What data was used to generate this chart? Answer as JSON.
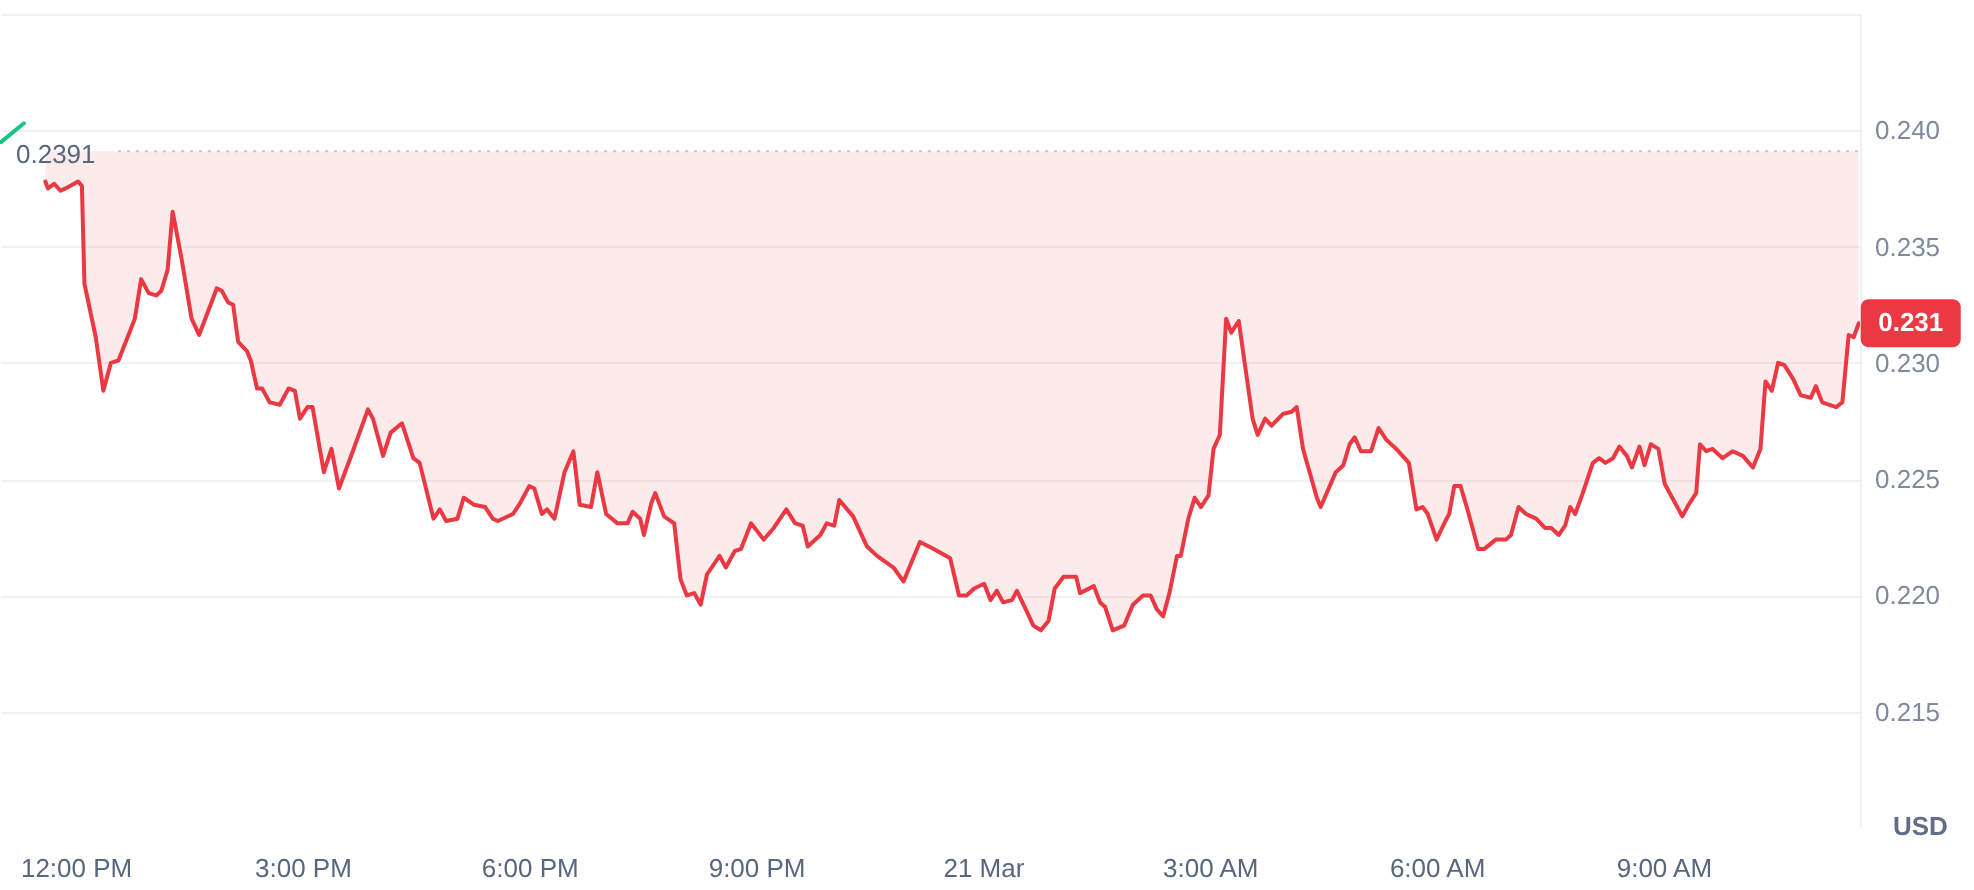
{
  "chart_data": {
    "type": "line",
    "ylabel": "USD",
    "grid": "y",
    "xlim": [
      "--03-20T11:00",
      "--03-21T11:36"
    ],
    "ylim": [
      0.21,
      0.245
    ],
    "xticks": [
      {
        "value": "--03-20T12:00",
        "label": "12:00 PM"
      },
      {
        "value": "--03-20T15:00",
        "label": "3:00 PM"
      },
      {
        "value": "--03-20T18:00",
        "label": "6:00 PM"
      },
      {
        "value": "--03-20T21:00",
        "label": "9:00 PM"
      },
      {
        "value": "--03-21T00:00",
        "label": "21 Mar"
      },
      {
        "value": "--03-21T03:00",
        "label": "3:00 AM"
      },
      {
        "value": "--03-21T06:00",
        "label": "6:00 AM"
      },
      {
        "value": "--03-21T09:00",
        "label": "9:00 AM"
      }
    ],
    "yticks": [
      0.215,
      {
        "value": 0.22,
        "label": "0.220"
      },
      0.225,
      {
        "value": 0.23,
        "label": "0.230"
      },
      0.235,
      {
        "value": 0.24,
        "label": "0.240"
      },
      {
        "value": 0.245,
        "label": null
      }
    ],
    "ref_lines": [
      {
        "axis": "y",
        "value": 0.2391,
        "label": "0.2391",
        "color": "#c3c7cf",
        "line_style": "dotted"
      }
    ],
    "annotations": [
      {
        "text": "0.231",
        "x": "--03-21T11:35",
        "y": 0.2317
      }
    ],
    "series": [
      {
        "color": "#ea3943",
        "x": [
          "--03-20T11:36",
          "--03-20T11:38",
          "--03-20T11:43",
          "--03-20T11:48",
          "--03-20T11:52",
          "--03-20T12:02",
          "--03-20T12:05",
          "--03-20T12:07",
          "--03-20T12:16",
          "--03-20T12:22",
          "--03-20T12:28",
          "--03-20T12:34",
          "--03-20T12:47",
          "--03-20T12:52",
          "--03-20T12:58",
          "--03-20T13:04",
          "--03-20T13:08",
          "--03-20T13:13",
          "--03-20T13:17",
          "--03-20T13:24",
          "--03-20T13:32",
          "--03-20T13:38",
          "--03-20T13:45",
          "--03-20T13:52",
          "--03-20T13:56",
          "--03-20T14:01",
          "--03-20T14:05",
          "--03-20T14:09",
          "--03-20T14:16",
          "--03-20T14:19",
          "--03-20T14:24",
          "--03-20T14:28",
          "--03-20T14:34",
          "--03-20T14:42",
          "--03-20T14:49",
          "--03-20T14:54",
          "--03-20T14:58",
          "--03-20T15:04",
          "--03-20T15:08",
          "--03-20T15:17",
          "--03-20T15:23",
          "--03-20T15:29",
          "--03-20T15:40",
          "--03-20T15:52",
          "--03-20T15:56",
          "--03-20T16:04",
          "--03-20T16:10",
          "--03-20T16:19",
          "--03-20T16:28",
          "--03-20T16:33",
          "--03-20T16:44",
          "--03-20T16:49",
          "--03-20T16:54",
          "--03-20T17:03",
          "--03-20T17:08",
          "--03-20T17:16",
          "--03-20T17:25",
          "--03-20T17:31",
          "--03-20T17:35",
          "--03-20T17:47",
          "--03-20T17:52",
          "--03-20T18:00",
          "--03-20T18:04",
          "--03-20T18:10",
          "--03-20T18:14",
          "--03-20T18:20",
          "--03-20T18:28",
          "--03-20T18:35",
          "--03-20T18:40",
          "--03-20T18:49",
          "--03-20T18:54",
          "--03-20T19:01",
          "--03-20T19:10",
          "--03-20T19:18",
          "--03-20T19:22",
          "--03-20T19:28",
          "--03-20T19:31",
          "--03-20T19:37",
          "--03-20T19:40",
          "--03-20T19:47",
          "--03-20T19:55",
          "--03-20T20:00",
          "--03-20T20:05",
          "--03-20T20:11",
          "--03-20T20:16",
          "--03-20T20:21",
          "--03-20T20:31",
          "--03-20T20:36",
          "--03-20T20:43",
          "--03-20T20:48",
          "--03-20T20:56",
          "--03-20T21:06",
          "--03-20T21:14",
          "--03-20T21:24",
          "--03-20T21:31",
          "--03-20T21:37",
          "--03-20T21:41",
          "--03-20T21:51",
          "--03-20T21:56",
          "--03-20T22:02",
          "--03-20T22:06",
          "--03-20T22:17",
          "--03-20T22:28",
          "--03-20T22:36",
          "--03-20T22:49",
          "--03-20T22:57",
          "--03-20T23:10",
          "--03-20T23:21",
          "--03-20T23:34",
          "--03-20T23:41",
          "--03-20T23:47",
          "--03-20T23:53",
          "--03-21T00:01",
          "--03-21T00:06",
          "--03-21T00:11",
          "--03-21T00:16",
          "--03-21T00:23",
          "--03-21T00:27",
          "--03-21T00:34",
          "--03-21T00:40",
          "--03-21T00:46",
          "--03-21T00:52",
          "--03-21T00:57",
          "--03-21T01:04",
          "--03-21T01:14",
          "--03-21T01:17",
          "--03-21T01:28",
          "--03-21T01:33",
          "--03-21T01:37",
          "--03-21T01:43",
          "--03-21T01:52",
          "--03-21T01:59",
          "--03-21T02:07",
          "--03-21T02:13",
          "--03-21T02:18",
          "--03-21T02:23",
          "--03-21T02:28",
          "--03-21T02:34",
          "--03-21T02:37",
          "--03-21T02:43",
          "--03-21T02:48",
          "--03-21T02:53",
          "--03-21T02:59",
          "--03-21T03:03",
          "--03-21T03:08",
          "--03-21T03:13",
          "--03-21T03:17",
          "--03-21T03:23",
          "--03-21T03:34",
          "--03-21T03:38",
          "--03-21T03:44",
          "--03-21T03:49",
          "--03-21T03:58",
          "--03-21T04:05",
          "--03-21T04:09",
          "--03-21T04:14",
          "--03-21T04:25",
          "--03-21T04:28",
          "--03-21T04:40",
          "--03-21T04:46",
          "--03-21T04:51",
          "--03-21T04:55",
          "--03-21T05:00",
          "--03-21T05:08",
          "--03-21T05:14",
          "--03-21T05:20",
          "--03-21T05:28",
          "--03-21T05:38",
          "--03-21T05:44",
          "--03-21T05:49",
          "--03-21T05:53",
          "--03-21T06:00",
          "--03-21T06:07",
          "--03-21T06:10",
          "--03-21T06:14",
          "--03-21T06:19",
          "--03-21T06:25",
          "--03-21T06:33",
          "--03-21T06:38",
          "--03-21T06:47",
          "--03-21T06:55",
          "--03-21T06:59",
          "--03-21T07:05",
          "--03-21T07:11",
          "--03-21T07:19",
          "--03-21T07:26",
          "--03-21T07:31",
          "--03-21T07:37",
          "--03-21T07:42",
          "--03-21T07:46",
          "--03-21T07:50",
          "--03-21T07:56",
          "--03-21T08:04",
          "--03-21T08:09",
          "--03-21T08:14",
          "--03-21T08:20",
          "--03-21T08:25",
          "--03-21T08:31",
          "--03-21T08:35",
          "--03-21T08:41",
          "--03-21T08:45",
          "--03-21T08:50",
          "--03-21T08:56",
          "--03-21T09:01",
          "--03-21T09:07",
          "--03-21T09:15",
          "--03-21T09:20",
          "--03-21T09:26",
          "--03-21T09:29",
          "--03-21T09:34",
          "--03-21T09:39",
          "--03-21T09:47",
          "--03-21T09:55",
          "--03-21T10:03",
          "--03-21T10:11",
          "--03-21T10:17",
          "--03-21T10:21",
          "--03-21T10:26",
          "--03-21T10:31",
          "--03-21T10:36",
          "--03-21T10:43",
          "--03-21T10:49",
          "--03-21T10:57",
          "--03-21T11:01",
          "--03-21T11:06",
          "--03-21T11:17",
          "--03-21T11:22",
          "--03-21T11:27",
          "--03-21T11:31",
          "--03-21T11:35"
        ],
        "values": [
          0.2378,
          0.2375,
          0.2377,
          0.2374,
          0.2375,
          0.2378,
          0.2376,
          0.2334,
          0.2311,
          0.2288,
          0.23,
          0.2301,
          0.2319,
          0.2336,
          0.233,
          0.2329,
          0.2331,
          0.234,
          0.2365,
          0.2345,
          0.2319,
          0.2312,
          0.2322,
          0.2332,
          0.2331,
          0.2326,
          0.2325,
          0.2309,
          0.2305,
          0.2301,
          0.2289,
          0.2289,
          0.2283,
          0.2282,
          0.2289,
          0.2288,
          0.2276,
          0.2281,
          0.2281,
          0.2253,
          0.2263,
          0.2246,
          0.2262,
          0.228,
          0.2276,
          0.226,
          0.227,
          0.2274,
          0.2259,
          0.2257,
          0.2233,
          0.2237,
          0.2232,
          0.2233,
          0.2242,
          0.2239,
          0.2238,
          0.2233,
          0.2232,
          0.2235,
          0.2239,
          0.2247,
          0.2246,
          0.2235,
          0.2237,
          0.2233,
          0.2253,
          0.2262,
          0.2239,
          0.2238,
          0.2253,
          0.2235,
          0.2231,
          0.2231,
          0.2236,
          0.2233,
          0.2226,
          0.224,
          0.2244,
          0.2234,
          0.2231,
          0.2207,
          0.22,
          0.2201,
          0.2196,
          0.2209,
          0.2217,
          0.2212,
          0.2219,
          0.222,
          0.2231,
          0.2224,
          0.2229,
          0.2237,
          0.2231,
          0.223,
          0.2221,
          0.2226,
          0.2231,
          0.223,
          0.2241,
          0.2234,
          0.2221,
          0.2217,
          0.2212,
          0.2206,
          0.2223,
          0.222,
          0.2216,
          0.22,
          0.22,
          0.2203,
          0.2205,
          0.2198,
          0.2202,
          0.2197,
          0.2198,
          0.2202,
          0.2194,
          0.2187,
          0.2185,
          0.2189,
          0.2203,
          0.2208,
          0.2208,
          0.2201,
          0.2204,
          0.2197,
          0.2195,
          0.2185,
          0.2187,
          0.2196,
          0.22,
          0.22,
          0.2194,
          0.2191,
          0.2201,
          0.2217,
          0.2217,
          0.2233,
          0.2242,
          0.2238,
          0.2243,
          0.2263,
          0.2269,
          0.2319,
          0.2313,
          0.2318,
          0.2276,
          0.2269,
          0.2276,
          0.2273,
          0.2278,
          0.2279,
          0.2281,
          0.2263,
          0.2242,
          0.2238,
          0.2253,
          0.2256,
          0.2265,
          0.2268,
          0.2262,
          0.2262,
          0.2272,
          0.2267,
          0.2263,
          0.2257,
          0.2237,
          0.2238,
          0.2235,
          0.2224,
          0.2232,
          0.2235,
          0.2247,
          0.2247,
          0.2236,
          0.222,
          0.222,
          0.2224,
          0.2224,
          0.2226,
          0.2238,
          0.2235,
          0.2233,
          0.2229,
          0.2229,
          0.2226,
          0.223,
          0.2238,
          0.2235,
          0.2244,
          0.2257,
          0.2259,
          0.2257,
          0.2259,
          0.2264,
          0.226,
          0.2255,
          0.2264,
          0.2256,
          0.2265,
          0.2263,
          0.2248,
          0.2242,
          0.2234,
          0.2239,
          0.2244,
          0.2265,
          0.2262,
          0.2263,
          0.2259,
          0.2262,
          0.226,
          0.2255,
          0.2263,
          0.2292,
          0.2288,
          0.23,
          0.2299,
          0.2293,
          0.2286,
          0.2285,
          0.229,
          0.2283,
          0.2281,
          0.2283,
          0.2312,
          0.2311,
          0.2317
        ],
        "lower": [
          0.2378,
          0.2375,
          0.2377,
          0.2374,
          0.2375,
          0.2378,
          0.2376,
          0.2334,
          0.2311,
          0.2288,
          0.23,
          0.2301,
          0.2319,
          0.2336,
          0.233,
          0.2329,
          0.2331,
          0.234,
          0.2365,
          0.2345,
          0.2319,
          0.2312,
          0.2322,
          0.2332,
          0.2331,
          0.2326,
          0.2325,
          0.2309,
          0.2305,
          0.2301,
          0.2289,
          0.2289,
          0.2283,
          0.2282,
          0.2289,
          0.2288,
          0.2276,
          0.2281,
          0.2281,
          0.2253,
          0.2263,
          0.2246,
          0.2262,
          0.228,
          0.2276,
          0.226,
          0.227,
          0.2274,
          0.2259,
          0.2257,
          0.2233,
          0.2237,
          0.2232,
          0.2233,
          0.2242,
          0.2239,
          0.2238,
          0.2233,
          0.2232,
          0.2235,
          0.2239,
          0.2247,
          0.2246,
          0.2235,
          0.2237,
          0.2233,
          0.2253,
          0.2262,
          0.2239,
          0.2238,
          0.2253,
          0.2235,
          0.2231,
          0.2231,
          0.2236,
          0.2233,
          0.2226,
          0.224,
          0.2244,
          0.2234,
          0.2231,
          0.2207,
          0.22,
          0.2201,
          0.2196,
          0.2209,
          0.2217,
          0.2212,
          0.2219,
          0.222,
          0.2231,
          0.2224,
          0.2229,
          0.2237,
          0.2231,
          0.223,
          0.2221,
          0.2226,
          0.2231,
          0.223,
          0.2241,
          0.2234,
          0.2221,
          0.2217,
          0.2212,
          0.2206,
          0.2223,
          0.222,
          0.2216,
          0.22,
          0.22,
          0.2203,
          0.2205,
          0.2198,
          0.2202,
          0.2197,
          0.2198,
          0.2202,
          0.2194,
          0.2187,
          0.2185,
          0.2189,
          0.2203,
          0.2208,
          0.2208,
          0.2201,
          0.2204,
          0.2197,
          0.2195,
          0.2185,
          0.2187,
          0.2196,
          0.22,
          0.22,
          0.2194,
          0.2191,
          0.2201,
          0.2217,
          0.2217,
          0.2233,
          0.2242,
          0.2238,
          0.2243,
          0.2263,
          0.2269,
          0.2319,
          0.2313,
          0.2318,
          0.2276,
          0.2269,
          0.2276,
          0.2273,
          0.2278,
          0.2279,
          0.2281,
          0.2263,
          0.2242,
          0.2238,
          0.2253,
          0.2256,
          0.2265,
          0.2268,
          0.2262,
          0.2262,
          0.2272,
          0.2267,
          0.2263,
          0.2257,
          0.2237,
          0.2238,
          0.2235,
          0.2224,
          0.2232,
          0.2235,
          0.2247,
          0.2247,
          0.2236,
          0.222,
          0.222,
          0.2224,
          0.2224,
          0.2226,
          0.2238,
          0.2235,
          0.2233,
          0.2229,
          0.2229,
          0.2226,
          0.223,
          0.2238,
          0.2235,
          0.2244,
          0.2257,
          0.2259,
          0.2257,
          0.2259,
          0.2264,
          0.226,
          0.2255,
          0.2264,
          0.2256,
          0.2265,
          0.2263,
          0.2248,
          0.2242,
          0.2234,
          0.2239,
          0.2244,
          0.2265,
          0.2262,
          0.2263,
          0.2259,
          0.2262,
          0.226,
          0.2255,
          0.2263,
          0.2292,
          0.2288,
          0.23,
          0.2299,
          0.2293,
          0.2286,
          0.2285,
          0.229,
          0.2283,
          0.2281,
          0.2283,
          0.2312,
          0.2311,
          0.2317
        ],
        "upper": [
          0.2391,
          0.2391,
          0.2391,
          0.2391,
          0.2391,
          0.2391,
          0.2391,
          0.2391,
          0.2391,
          0.2391,
          0.2391,
          0.2391,
          0.2391,
          0.2391,
          0.2391,
          0.2391,
          0.2391,
          0.2391,
          0.2391,
          0.2391,
          0.2391,
          0.2391,
          0.2391,
          0.2391,
          0.2391,
          0.2391,
          0.2391,
          0.2391,
          0.2391,
          0.2391,
          0.2391,
          0.2391,
          0.2391,
          0.2391,
          0.2391,
          0.2391,
          0.2391,
          0.2391,
          0.2391,
          0.2391,
          0.2391,
          0.2391,
          0.2391,
          0.2391,
          0.2391,
          0.2391,
          0.2391,
          0.2391,
          0.2391,
          0.2391,
          0.2391,
          0.2391,
          0.2391,
          0.2391,
          0.2391,
          0.2391,
          0.2391,
          0.2391,
          0.2391,
          0.2391,
          0.2391,
          0.2391,
          0.2391,
          0.2391,
          0.2391,
          0.2391,
          0.2391,
          0.2391,
          0.2391,
          0.2391,
          0.2391,
          0.2391,
          0.2391,
          0.2391,
          0.2391,
          0.2391,
          0.2391,
          0.2391,
          0.2391,
          0.2391,
          0.2391,
          0.2391,
          0.2391,
          0.2391,
          0.2391,
          0.2391,
          0.2391,
          0.2391,
          0.2391,
          0.2391,
          0.2391,
          0.2391,
          0.2391,
          0.2391,
          0.2391,
          0.2391,
          0.2391,
          0.2391,
          0.2391,
          0.2391,
          0.2391,
          0.2391,
          0.2391,
          0.2391,
          0.2391,
          0.2391,
          0.2391,
          0.2391,
          0.2391,
          0.2391,
          0.2391,
          0.2391,
          0.2391,
          0.2391,
          0.2391,
          0.2391,
          0.2391,
          0.2391,
          0.2391,
          0.2391,
          0.2391,
          0.2391,
          0.2391,
          0.2391,
          0.2391,
          0.2391,
          0.2391,
          0.2391,
          0.2391,
          0.2391,
          0.2391,
          0.2391,
          0.2391,
          0.2391,
          0.2391,
          0.2391,
          0.2391,
          0.2391,
          0.2391,
          0.2391,
          0.2391,
          0.2391,
          0.2391,
          0.2391,
          0.2391,
          0.2391,
          0.2391,
          0.2391,
          0.2391,
          0.2391,
          0.2391,
          0.2391,
          0.2391,
          0.2391,
          0.2391,
          0.2391,
          0.2391,
          0.2391,
          0.2391,
          0.2391,
          0.2391,
          0.2391,
          0.2391,
          0.2391,
          0.2391,
          0.2391,
          0.2391,
          0.2391,
          0.2391,
          0.2391,
          0.2391,
          0.2391,
          0.2391,
          0.2391,
          0.2391,
          0.2391,
          0.2391,
          0.2391,
          0.2391,
          0.2391,
          0.2391,
          0.2391,
          0.2391,
          0.2391,
          0.2391,
          0.2391,
          0.2391,
          0.2391,
          0.2391,
          0.2391,
          0.2391,
          0.2391,
          0.2391,
          0.2391,
          0.2391,
          0.2391,
          0.2391,
          0.2391,
          0.2391,
          0.2391,
          0.2391,
          0.2391,
          0.2391,
          0.2391,
          0.2391,
          0.2391,
          0.2391,
          0.2391,
          0.2391,
          0.2391,
          0.2391,
          0.2391,
          0.2391,
          0.2391,
          0.2391,
          0.2391,
          0.2391,
          0.2391,
          0.2391,
          0.2391,
          0.2391,
          0.2391,
          0.2391,
          0.2391,
          0.2391,
          0.2391,
          0.2391,
          0.2391,
          0.2391,
          0.2391
        ]
      },
      {
        "color": "#16c784",
        "x": [
          "--03-20T11:01",
          "--03-20T11:19"
        ],
        "values": [
          0.2395,
          0.2403
        ]
      }
    ]
  }
}
